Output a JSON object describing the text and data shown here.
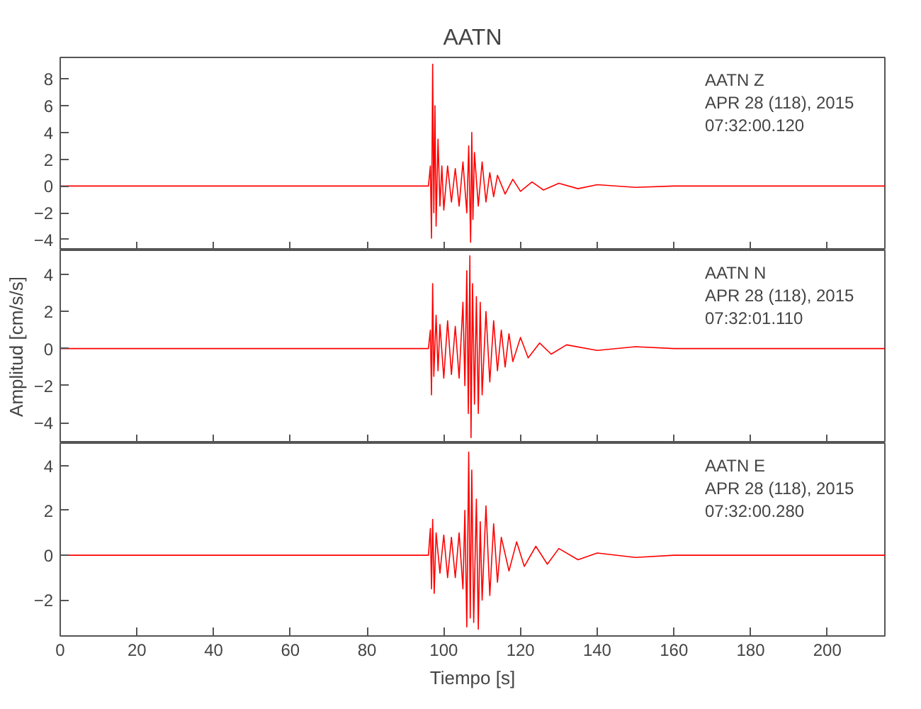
{
  "chart_data": [
    {
      "type": "line",
      "title": "AATN",
      "annotations": [
        "AATN   Z",
        "APR 28 (118), 2015",
        "07:32:00.120"
      ],
      "xlim": [
        0,
        215
      ],
      "xticks": [
        0,
        20,
        40,
        60,
        80,
        100,
        120,
        140,
        160,
        180,
        200
      ],
      "ylim": [
        -4.8,
        9.6
      ],
      "yticks": [
        -4,
        -2,
        0,
        2,
        4,
        6,
        8
      ],
      "tick_labels": "y",
      "series": [
        {
          "color": "#ff0000",
          "x": [
            0,
            96,
            96.5,
            96.8,
            97.1,
            97.4,
            97.7,
            98,
            98.5,
            99,
            99.5,
            100,
            101,
            102,
            103,
            104,
            105,
            106,
            106.5,
            107,
            107.3,
            107.6,
            108,
            109,
            110,
            111,
            112,
            113,
            114,
            116,
            118,
            120,
            123,
            126,
            130,
            135,
            140,
            150,
            160,
            215
          ],
          "values": [
            0,
            0,
            1.5,
            -3.9,
            9.1,
            -2,
            6,
            -3,
            3.5,
            -1.5,
            1.5,
            -1.8,
            1.5,
            -1.2,
            1.3,
            -1.5,
            1.8,
            -2,
            3,
            -4.2,
            4.0,
            -2.5,
            2.5,
            -1.5,
            1.8,
            -1.2,
            1.0,
            -0.8,
            0.8,
            -0.6,
            0.5,
            -0.4,
            0.3,
            -0.3,
            0.2,
            -0.2,
            0.1,
            -0.1,
            0,
            0
          ]
        }
      ]
    },
    {
      "type": "line",
      "ylabel": "Amplitud [cm/s/s]",
      "annotations": [
        "AATN   N",
        "APR 28 (118), 2015",
        "07:32:01.110"
      ],
      "xlim": [
        0,
        215
      ],
      "xticks": [
        0,
        20,
        40,
        60,
        80,
        100,
        120,
        140,
        160,
        180,
        200
      ],
      "ylim": [
        -5.1,
        5.3
      ],
      "yticks": [
        -4,
        -2,
        0,
        2,
        4
      ],
      "tick_labels": "y",
      "series": [
        {
          "color": "#ff0000",
          "x": [
            0,
            96,
            96.5,
            96.8,
            97.1,
            97.4,
            98,
            98.5,
            99,
            100,
            101,
            102,
            103,
            104,
            105,
            105.5,
            106,
            106.4,
            106.8,
            107.1,
            107.5,
            108,
            108.5,
            109,
            109.5,
            110,
            111,
            112,
            113,
            114,
            115,
            116,
            117,
            118,
            120,
            122,
            125,
            128,
            132,
            140,
            150,
            160,
            215
          ],
          "values": [
            0,
            0,
            1,
            -2.5,
            3.5,
            -1.5,
            1.8,
            -1.2,
            1.3,
            -1.6,
            1.5,
            -1.4,
            1.2,
            -1.6,
            2.5,
            -2,
            4.2,
            -3.5,
            5.0,
            -4.8,
            3.5,
            -3,
            2.8,
            -3.5,
            2.5,
            -2.5,
            2,
            -1.8,
            1.5,
            -1.2,
            1.0,
            -1,
            0.8,
            -0.7,
            0.6,
            -0.5,
            0.3,
            -0.3,
            0.2,
            -0.1,
            0.1,
            0,
            0
          ]
        }
      ]
    },
    {
      "type": "line",
      "xlabel": "Tiempo [s]",
      "annotations": [
        "AATN   E",
        "APR 28 (118), 2015",
        "07:32:00.280"
      ],
      "xlim": [
        0,
        215
      ],
      "xticks": [
        0,
        20,
        40,
        60,
        80,
        100,
        120,
        140,
        160,
        180,
        200
      ],
      "ylim": [
        -3.6,
        5.0
      ],
      "yticks": [
        -2,
        0,
        2,
        4
      ],
      "series": [
        {
          "color": "#ff0000",
          "x": [
            0,
            96,
            96.5,
            96.8,
            97.1,
            97.5,
            98,
            99,
            100,
            101,
            102,
            103,
            104,
            105,
            105.5,
            106,
            106.5,
            106.9,
            107.3,
            107.8,
            108.5,
            109,
            109.5,
            110,
            111,
            112,
            113,
            114,
            115,
            117,
            119,
            121,
            124,
            127,
            130,
            135,
            140,
            150,
            160,
            215
          ],
          "values": [
            0,
            0,
            1.2,
            -1.5,
            1.6,
            -1.7,
            1,
            -0.8,
            0.9,
            -1,
            0.8,
            -1,
            1,
            -1.5,
            2,
            -3.2,
            4.6,
            -2.8,
            3.8,
            -3,
            2.5,
            -3.3,
            1.5,
            -2,
            2.2,
            -1.8,
            1.4,
            -1.2,
            0.8,
            -0.7,
            0.6,
            -0.5,
            0.4,
            -0.4,
            0.3,
            -0.2,
            0.1,
            -0.1,
            0,
            0
          ]
        }
      ]
    }
  ]
}
